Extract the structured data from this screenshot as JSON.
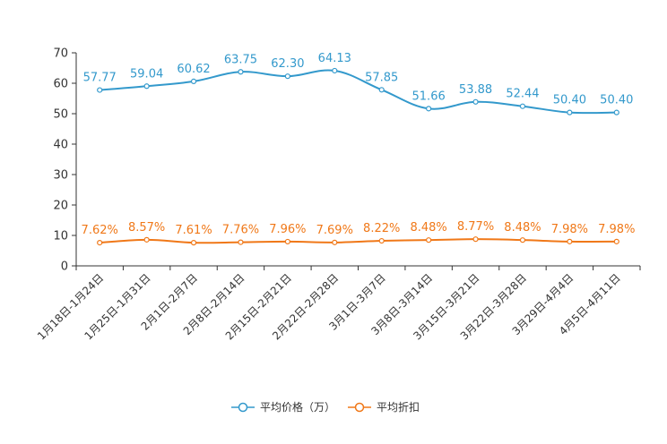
{
  "chart_data": {
    "type": "line",
    "categories": [
      "1月18日-1月24日",
      "1月25日-1月31日",
      "2月1日-2月7日",
      "2月8日-2月14日",
      "2月15日-2月21日",
      "2月22日-2月28日",
      "3月1日-3月7日",
      "3月8日-3月14日",
      "3月15日-3月21日",
      "3月22日-3月28日",
      "3月29日-4月4日",
      "4月5日-4月11日"
    ],
    "ylim": [
      0,
      70
    ],
    "yticks": [
      0,
      10,
      20,
      30,
      40,
      50,
      60,
      70
    ],
    "series": [
      {
        "name": "平均价格（万）",
        "color": "#3399cc",
        "values": [
          57.77,
          59.04,
          60.62,
          63.75,
          62.3,
          64.13,
          57.85,
          51.66,
          53.88,
          52.44,
          50.4,
          50.4
        ],
        "labels": [
          "57.77",
          "59.04",
          "60.62",
          "63.75",
          "62.30",
          "64.13",
          "57.85",
          "51.66",
          "53.88",
          "52.44",
          "50.40",
          "50.40"
        ]
      },
      {
        "name": "平均折扣",
        "color": "#f07818",
        "values": [
          7.62,
          8.57,
          7.61,
          7.76,
          7.96,
          7.69,
          8.22,
          8.48,
          8.77,
          8.48,
          7.98,
          7.98
        ],
        "labels": [
          "7.62%",
          "8.57%",
          "7.61%",
          "7.76%",
          "7.96%",
          "7.69%",
          "8.22%",
          "8.48%",
          "8.77%",
          "8.48%",
          "7.98%",
          "7.98%"
        ]
      }
    ],
    "legend_position": "bottom"
  }
}
